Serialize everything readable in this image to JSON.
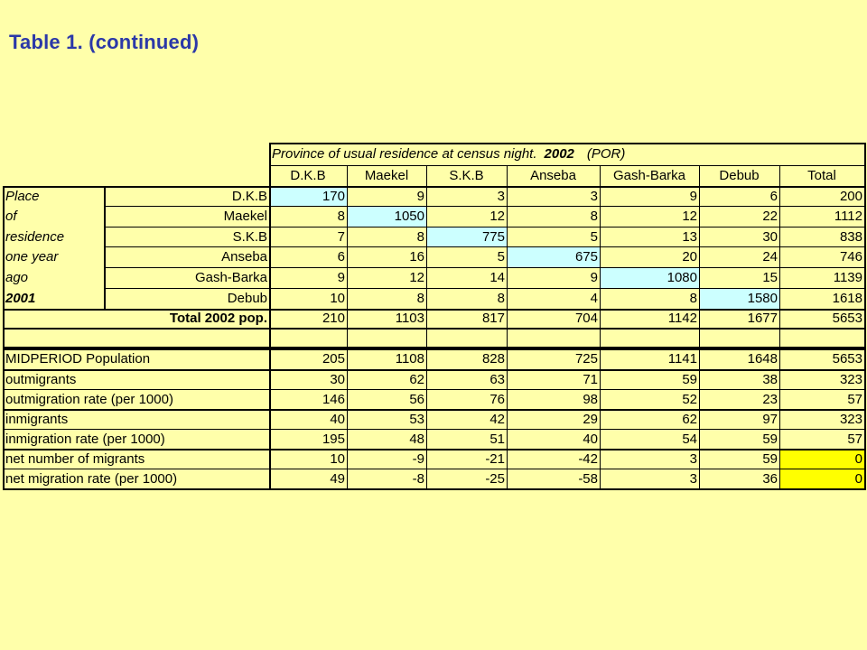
{
  "title": "Table 1.  (continued)",
  "header": {
    "super_label_pre": "Province of usual residence at census night.",
    "super_label_year": "2002",
    "super_label_post": "(POR)",
    "columns": [
      "D.K.B",
      "Maekel",
      "S.K.B",
      "Anseba",
      "Gash-Barka",
      "Debub",
      "Total"
    ]
  },
  "side_labels": [
    "Place",
    "of",
    "residence",
    "one year",
    "ago",
    "2001"
  ],
  "matrix_rows": [
    {
      "label": "D.K.B",
      "values": [
        "170",
        "9",
        "3",
        "3",
        "9",
        "6",
        "200"
      ]
    },
    {
      "label": "Maekel",
      "values": [
        "8",
        "1050",
        "12",
        "8",
        "12",
        "22",
        "1112"
      ]
    },
    {
      "label": "S.K.B",
      "values": [
        "7",
        "8",
        "775",
        "5",
        "13",
        "30",
        "838"
      ]
    },
    {
      "label": "Anseba",
      "values": [
        "6",
        "16",
        "5",
        "675",
        "20",
        "24",
        "746"
      ]
    },
    {
      "label": "Gash-Barka",
      "values": [
        "9",
        "12",
        "14",
        "9",
        "1080",
        "15",
        "1139"
      ]
    },
    {
      "label": "Debub",
      "values": [
        "10",
        "8",
        "8",
        "4",
        "8",
        "1580",
        "1618"
      ]
    }
  ],
  "total_row": {
    "label": "Total 2002 pop.",
    "values": [
      "210",
      "1103",
      "817",
      "704",
      "1142",
      "1677",
      "5653"
    ]
  },
  "stats_rows": [
    {
      "label": "MIDPERIOD Population",
      "values": [
        "205",
        "1108",
        "828",
        "725",
        "1141",
        "1648",
        "5653"
      ]
    },
    {
      "label": "outmigrants",
      "values": [
        "30",
        "62",
        "63",
        "71",
        "59",
        "38",
        "323"
      ]
    },
    {
      "label": "outmigration rate (per 1000)",
      "values": [
        "146",
        "56",
        "76",
        "98",
        "52",
        "23",
        "57"
      ]
    },
    {
      "label": "inmigrants",
      "values": [
        "40",
        "53",
        "42",
        "29",
        "62",
        "97",
        "323"
      ]
    },
    {
      "label": "inmigration rate (per 1000)",
      "values": [
        "195",
        "48",
        "51",
        "40",
        "54",
        "59",
        "57"
      ]
    },
    {
      "label": "net number of migrants",
      "values": [
        "10",
        "-9",
        "-21",
        "-42",
        "3",
        "59",
        "0"
      ]
    },
    {
      "label": "net migration rate (per 1000)",
      "values": [
        "49",
        "-8",
        "-25",
        "-58",
        "3",
        "36",
        "0"
      ]
    }
  ],
  "colors": {
    "background": "#FFFFAA",
    "title": "#2B38A8",
    "diagonal_fill": "#CCFFFF",
    "highlight_fill": "#FFFF00"
  }
}
